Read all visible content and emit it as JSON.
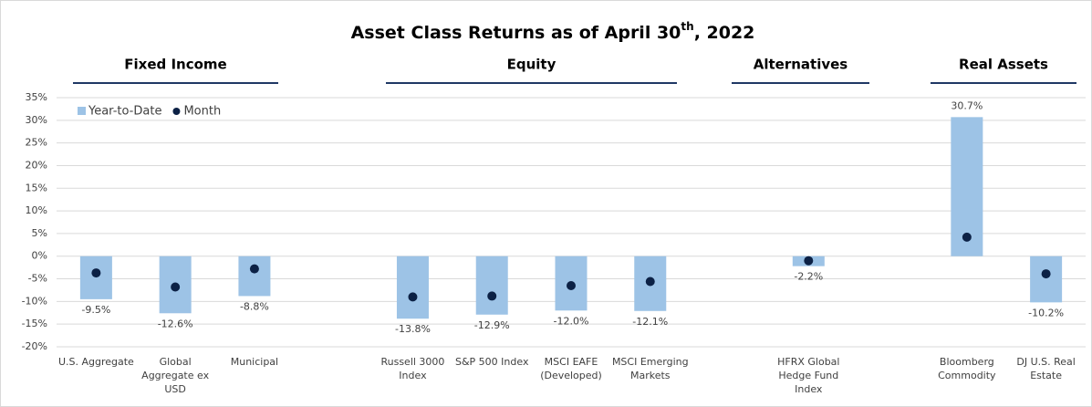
{
  "chart_data": {
    "type": "bar",
    "title": [
      "Asset Class Returns as of April 30",
      "th",
      ", 2022"
    ],
    "groups": [
      "Fixed Income",
      "Equity",
      "Alternatives",
      "Real Assets"
    ],
    "categories": [
      "U.S. Aggregate",
      "Global Aggregate ex USD",
      "Municipal",
      null,
      "Russell 3000 Index",
      "S&P 500 Index",
      "MSCI EAFE (Developed)",
      "MSCI Emerging Markets",
      null,
      "HFRX Global Hedge Fund Index",
      null,
      "Bloomberg Commodity",
      "DJ U.S. Real Estate"
    ],
    "series": [
      {
        "name": "Year-to-Date",
        "color": "#9dc3e6",
        "kind": "bar",
        "values": [
          -9.5,
          -12.6,
          -8.8,
          null,
          -13.8,
          -12.9,
          -12.0,
          -12.1,
          null,
          -2.2,
          null,
          30.7,
          -10.2
        ],
        "value_labels": [
          "-9.5%",
          "-12.6%",
          "-8.8%",
          null,
          "-13.8%",
          "-12.9%",
          "-12.0%",
          "-12.1%",
          null,
          "-2.2%",
          null,
          "30.7%",
          "-10.2%"
        ]
      },
      {
        "name": "Month",
        "color": "#0c2145",
        "kind": "dot",
        "values": [
          -3.7,
          -6.8,
          -2.8,
          null,
          -9.0,
          -8.8,
          -6.5,
          -5.6,
          null,
          -1.0,
          null,
          4.2,
          -3.9
        ]
      }
    ],
    "ylim": [
      -20,
      35
    ],
    "yticks": [
      {
        "value": -20,
        "label": "-20%"
      },
      {
        "value": -15,
        "label": "-15%"
      },
      {
        "value": -10,
        "label": "-10%"
      },
      {
        "value": -5,
        "label": "-5%"
      },
      {
        "value": 0,
        "label": "0%"
      },
      {
        "value": 5,
        "label": "5%"
      },
      {
        "value": 10,
        "label": "10%"
      },
      {
        "value": 15,
        "label": "15%"
      },
      {
        "value": 20,
        "label": "20%"
      },
      {
        "value": 25,
        "label": "25%"
      },
      {
        "value": 30,
        "label": "30%"
      },
      {
        "value": 35,
        "label": "35%"
      }
    ],
    "grid": true,
    "legend": "top-left"
  }
}
